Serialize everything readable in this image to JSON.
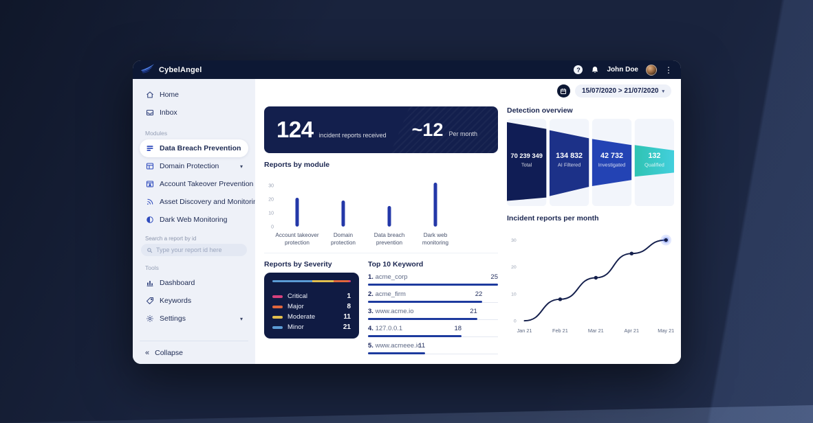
{
  "brand": {
    "name": "CybelAngel"
  },
  "topbar": {
    "help_icon": "question-mark",
    "notifications_icon": "bell",
    "user_name": "John Doe",
    "menu_icon": "kebab-vertical",
    "bar_color": "#0d1834"
  },
  "sidebar": {
    "nav": [
      {
        "icon": "home",
        "label": "Home"
      },
      {
        "icon": "inbox",
        "label": "Inbox"
      }
    ],
    "modules_label": "Modules",
    "modules": [
      {
        "icon": "breach",
        "label": "Data Breach Prevention",
        "active": true
      },
      {
        "icon": "domain",
        "label": "Domain Protection",
        "chevron": true
      },
      {
        "icon": "account",
        "label": "Account Takeover Prevention"
      },
      {
        "icon": "asset",
        "label": "Asset Discovery and Monitoring"
      },
      {
        "icon": "darkweb",
        "label": "Dark Web Monitoring"
      }
    ],
    "search_label": "Search a report by id",
    "search_placeholder": "Type your report id here",
    "tools_label": "Tools",
    "tools": [
      {
        "icon": "dashboard",
        "label": "Dashboard"
      },
      {
        "icon": "keywords",
        "label": "Keywords"
      },
      {
        "icon": "settings",
        "label": "Settings",
        "chevron": true
      }
    ],
    "collapse_label": "Collapse"
  },
  "main": {
    "date_range": "15/07/2020 > 21/07/2020",
    "stat": {
      "total": "124",
      "total_label": "incident reports received",
      "per_month": "~12",
      "per_month_label": "Per month",
      "card_color": "#131f4d"
    }
  },
  "chart_data": [
    {
      "type": "bar",
      "title": "Reports by module",
      "categories": [
        [
          "Account takeover",
          "protection"
        ],
        [
          "Domain",
          "protection"
        ],
        [
          "Data breach",
          "prevention"
        ],
        [
          "Dark web",
          "monitoring"
        ]
      ],
      "values": [
        21,
        19,
        15,
        32
      ],
      "yticks": [
        0,
        10,
        20,
        30
      ],
      "ylim": [
        0,
        30
      ],
      "bar_color": "#2438a8"
    },
    {
      "type": "funnel",
      "title": "Detection overview",
      "stages": [
        {
          "value": "70 239 349",
          "label": "Total",
          "color": "#101d55"
        },
        {
          "value": "134 832",
          "label": "AI Filtered",
          "color": "#1c3188"
        },
        {
          "value": "42 732",
          "label": "Investigated",
          "color": "#2343b4"
        },
        {
          "value": "132",
          "label": "Qualified",
          "color": "#2fc3b2",
          "color2": "#43cfdd"
        }
      ],
      "panel_color": "#f2f5fb"
    },
    {
      "type": "stacked_bar",
      "title": "Reports by Severity",
      "items": [
        {
          "label": "Critical",
          "value": 1,
          "color": "#d6407c"
        },
        {
          "label": "Major",
          "value": 8,
          "color": "#e0663c"
        },
        {
          "label": "Moderate",
          "value": 11,
          "color": "#e2bf4e"
        },
        {
          "label": "Minor",
          "value": 21,
          "color": "#5b9bd5"
        }
      ],
      "bar_order_left_to_right": [
        "Minor",
        "Moderate",
        "Major",
        "Critical"
      ]
    },
    {
      "type": "bar_list",
      "title": "Top 10 Keyword",
      "max": 25,
      "bar_color": "#1d3a9e",
      "items": [
        {
          "rank": "1.",
          "label": "acme_corp",
          "value": 25
        },
        {
          "rank": "2.",
          "label": "acme_firm",
          "value": 22
        },
        {
          "rank": "3.",
          "label": "www.acme.io",
          "value": 21
        },
        {
          "rank": "4.",
          "label": "127.0.0.1",
          "value": 18
        },
        {
          "rank": "5.",
          "label": "www.acmeee.io",
          "value": 11
        }
      ]
    },
    {
      "type": "line",
      "title": "Incident reports per month",
      "x": [
        "Jan 21",
        "Feb 21",
        "Mar 21",
        "Apr 21",
        "May 21"
      ],
      "values": [
        0,
        8,
        16,
        25,
        30
      ],
      "yticks": [
        0,
        10,
        20,
        30
      ],
      "ylim": [
        0,
        30
      ],
      "line_color": "#141f4c",
      "halo_color": "#5b79f7"
    }
  ]
}
